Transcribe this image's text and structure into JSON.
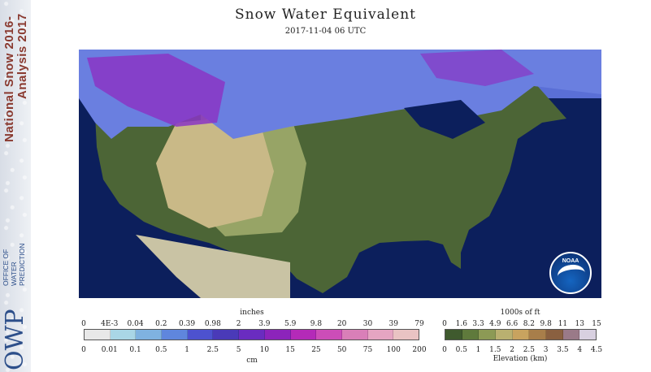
{
  "title": "Snow Water Equivalent",
  "timestamp": "2017-11-04 06 UTC",
  "sidebar": {
    "heading_line1": "National Snow 2016-",
    "heading_line2": "Analysis 2017",
    "org_abbrev": "OWP",
    "org_line1": "OFFICE OF",
    "org_line2": "WATER",
    "org_line3": "PREDICTION",
    "colors": {
      "brand": "#8a3a30",
      "org": "#2d4f8a"
    }
  },
  "logo": {
    "text": "NOAA",
    "icon": "noaa-logo-icon"
  },
  "swe_legend": {
    "top_unit": "inches",
    "top_ticks": [
      "0",
      "4E-3",
      "0.04",
      "0.2",
      "0.39",
      "0.98",
      "2",
      "3.9",
      "5.9",
      "9.8",
      "20",
      "30",
      "39",
      "79"
    ],
    "bottom_ticks": [
      "0",
      "0.01",
      "0.1",
      "0.5",
      "1",
      "2.5",
      "5",
      "10",
      "15",
      "25",
      "50",
      "75",
      "100",
      "200"
    ],
    "bottom_unit": "cm",
    "colors": [
      "#e8e8e8",
      "#a9d6e6",
      "#7fb2e0",
      "#5f86dd",
      "#4d52cf",
      "#4a3ab8",
      "#6a2cc0",
      "#8c24bb",
      "#b42ab8",
      "#cc4db8",
      "#d97fb8",
      "#e5a5c2",
      "#e9c3c3"
    ]
  },
  "elevation_legend": {
    "top_unit": "1000s of ft",
    "top_ticks": [
      "0",
      "1.6",
      "3.3",
      "4.9",
      "6.6",
      "8.2",
      "9.8",
      "11",
      "13",
      "15"
    ],
    "bottom_ticks": [
      "0",
      "0.5",
      "1",
      "1.5",
      "2",
      "2.5",
      "3",
      "3.5",
      "4",
      "4.5"
    ],
    "bottom_unit": "Elevation (km)",
    "colors": [
      "#3f5a2e",
      "#5f7a3c",
      "#8c9a55",
      "#b9b070",
      "#c8a35f",
      "#a87e4a",
      "#8a6040",
      "#9a7a88",
      "#d8d0e0"
    ]
  },
  "map": {
    "colors": {
      "ocean": "#0c1f5c",
      "land_low": "#4c6536",
      "land_mid": "#97a466",
      "land_high": "#c9b987",
      "snow_light": "#8fb7ea",
      "snow_mid": "#5b78df",
      "snow_heavy": "#8a35c4",
      "mexico": "#c9c3a4"
    }
  }
}
